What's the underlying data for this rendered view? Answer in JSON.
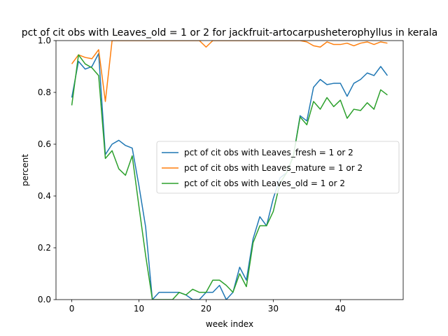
{
  "chart_data": {
    "type": "line",
    "title": "pct of cit obs with Leaves_old = 1 or 2 for jackfruit-artocarpusheterophyllus in kerala",
    "xlabel": "week index",
    "ylabel": "percent",
    "xlim": [
      -2.35,
      49.35
    ],
    "ylim": [
      0,
      1.0
    ],
    "xticks": [
      0,
      10,
      20,
      30,
      40
    ],
    "yticks": [
      0.0,
      0.2,
      0.4,
      0.6,
      0.8,
      1.0
    ],
    "xtick_labels": [
      "0",
      "10",
      "20",
      "30",
      "40"
    ],
    "ytick_labels": [
      "0.0",
      "0.2",
      "0.4",
      "0.6",
      "0.8",
      "1.0"
    ],
    "grid": false,
    "legend": "center-right",
    "x": [
      0,
      1,
      2,
      3,
      4,
      5,
      6,
      7,
      8,
      9,
      10,
      11,
      12,
      13,
      14,
      15,
      16,
      17,
      18,
      19,
      20,
      21,
      22,
      23,
      24,
      25,
      26,
      27,
      28,
      29,
      30,
      31,
      32,
      33,
      34,
      35,
      36,
      37,
      38,
      39,
      40,
      41,
      42,
      43,
      44,
      45,
      46,
      47
    ],
    "series": [
      {
        "name": "pct of cit obs with Leaves_fresh = 1 or 2",
        "color": "#1f77b4",
        "values": [
          0.78,
          0.92,
          0.89,
          0.9,
          0.95,
          0.56,
          0.6,
          0.615,
          0.595,
          0.585,
          0.44,
          0.28,
          0.0,
          0.028,
          0.028,
          0.028,
          0.028,
          0.018,
          0.0,
          0.0,
          0.028,
          0.028,
          0.055,
          0.0,
          0.028,
          0.125,
          0.075,
          0.235,
          0.32,
          0.285,
          0.39,
          0.47,
          0.49,
          0.555,
          0.71,
          0.69,
          0.82,
          0.85,
          0.83,
          0.835,
          0.835,
          0.785,
          0.835,
          0.85,
          0.875,
          0.865,
          0.9,
          0.865
        ]
      },
      {
        "name": "pct of cit obs with Leaves_mature = 1 or 2",
        "color": "#ff7f0e",
        "values": [
          0.91,
          0.945,
          0.935,
          0.93,
          0.965,
          0.765,
          1.0,
          1.0,
          1.0,
          1.0,
          1.0,
          1.0,
          1.0,
          1.0,
          1.0,
          1.0,
          1.0,
          1.0,
          1.0,
          1.0,
          0.975,
          1.0,
          1.0,
          1.0,
          1.0,
          1.0,
          1.0,
          1.0,
          1.0,
          1.0,
          1.0,
          1.0,
          1.0,
          1.0,
          1.0,
          0.995,
          0.98,
          0.975,
          0.995,
          0.985,
          0.985,
          0.99,
          0.98,
          0.99,
          0.995,
          0.985,
          0.995,
          0.99
        ]
      },
      {
        "name": "pct of cit obs with Leaves_old = 1 or 2",
        "color": "#2ca02c",
        "values": [
          0.75,
          0.945,
          0.91,
          0.895,
          0.865,
          0.545,
          0.575,
          0.505,
          0.48,
          0.555,
          0.36,
          0.17,
          0.0,
          0.0,
          0.0,
          0.0,
          0.028,
          0.018,
          0.04,
          0.028,
          0.028,
          0.075,
          0.075,
          0.055,
          0.028,
          0.1,
          0.05,
          0.22,
          0.285,
          0.285,
          0.34,
          0.45,
          0.49,
          0.555,
          0.705,
          0.675,
          0.765,
          0.735,
          0.78,
          0.745,
          0.77,
          0.7,
          0.735,
          0.73,
          0.76,
          0.735,
          0.81,
          0.79
        ]
      }
    ]
  }
}
